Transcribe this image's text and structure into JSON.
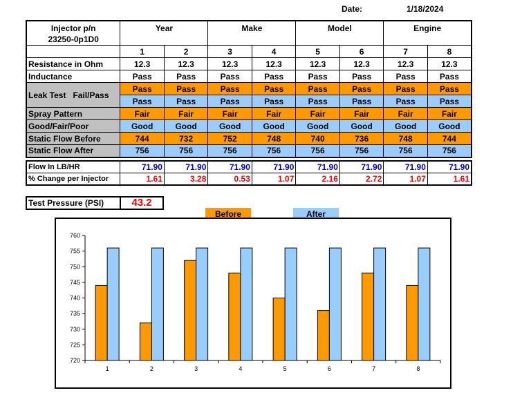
{
  "header": {
    "date_label": "Date:",
    "date_value": "1/18/2024"
  },
  "vehicle": {
    "injector_pn_label": "Injector p/n",
    "injector_pn_value": "23250-0p1D0",
    "year_label": "Year",
    "make_label": "Make",
    "model_label": "Model",
    "engine_label": "Engine"
  },
  "injector_numbers": [
    "1",
    "2",
    "3",
    "4",
    "5",
    "6",
    "7",
    "8"
  ],
  "rows": {
    "resistance": {
      "label": "Resistance in Ohm",
      "values": [
        "12.3",
        "12.3",
        "12.3",
        "12.3",
        "12.3",
        "12.3",
        "12.3",
        "12.3"
      ]
    },
    "inductance": {
      "label": "Inductance",
      "values": [
        "Pass",
        "Pass",
        "Pass",
        "Pass",
        "Pass",
        "Pass",
        "Pass",
        "Pass"
      ]
    },
    "leak_test": {
      "label": "Leak Test   Fail/Pass",
      "before": [
        "Pass",
        "Pass",
        "Pass",
        "Pass",
        "Pass",
        "Pass",
        "Pass",
        "Pass"
      ],
      "after": [
        "Pass",
        "Pass",
        "Pass",
        "Pass",
        "Pass",
        "Pass",
        "Pass",
        "Pass"
      ]
    },
    "spray_pattern": {
      "label": "Spray Pattern",
      "label2": "Good/Fair/Poor",
      "before": [
        "Fair",
        "Fair",
        "Fair",
        "Fair",
        "Fair",
        "Fair",
        "Fair",
        "Fair"
      ],
      "after": [
        "Good",
        "Good",
        "Good",
        "Good",
        "Good",
        "Good",
        "Good",
        "Good"
      ]
    },
    "static_flow_before": {
      "label": "Static Flow Before",
      "values": [
        "744",
        "732",
        "752",
        "748",
        "740",
        "736",
        "748",
        "744"
      ]
    },
    "static_flow_after": {
      "label": "Static Flow After",
      "values": [
        "756",
        "756",
        "756",
        "756",
        "756",
        "756",
        "756",
        "756"
      ]
    }
  },
  "flow": {
    "flow_lbhr": {
      "label": "Flow In LB/HR",
      "values": [
        "71.90",
        "71.90",
        "71.90",
        "71.90",
        "71.90",
        "71.90",
        "71.90",
        "71.90"
      ]
    },
    "pct_change": {
      "label": "% Change per Injector",
      "values": [
        "1.61",
        "3.28",
        "0.53",
        "1.07",
        "2.16",
        "2.72",
        "1.07",
        "1.61"
      ]
    }
  },
  "test_pressure": {
    "label": "Test Pressure (PSI)",
    "value": "43.2"
  },
  "legend": {
    "before": "Before",
    "after": "After"
  },
  "colors": {
    "before": "#ff9900",
    "after": "#99ccff",
    "flow_text": "#0000cc",
    "pct_text": "#ff0000"
  },
  "chart_data": {
    "type": "bar",
    "categories": [
      "1",
      "2",
      "3",
      "4",
      "5",
      "6",
      "7",
      "8"
    ],
    "series": [
      {
        "name": "Before",
        "values": [
          744,
          732,
          752,
          748,
          740,
          736,
          748,
          744
        ]
      },
      {
        "name": "After",
        "values": [
          756,
          756,
          756,
          756,
          756,
          756,
          756,
          756
        ]
      }
    ],
    "ylim": [
      720,
      760
    ],
    "yticks": [
      720,
      725,
      730,
      735,
      740,
      745,
      750,
      755,
      760
    ],
    "grid": false,
    "legend_position": "top"
  }
}
